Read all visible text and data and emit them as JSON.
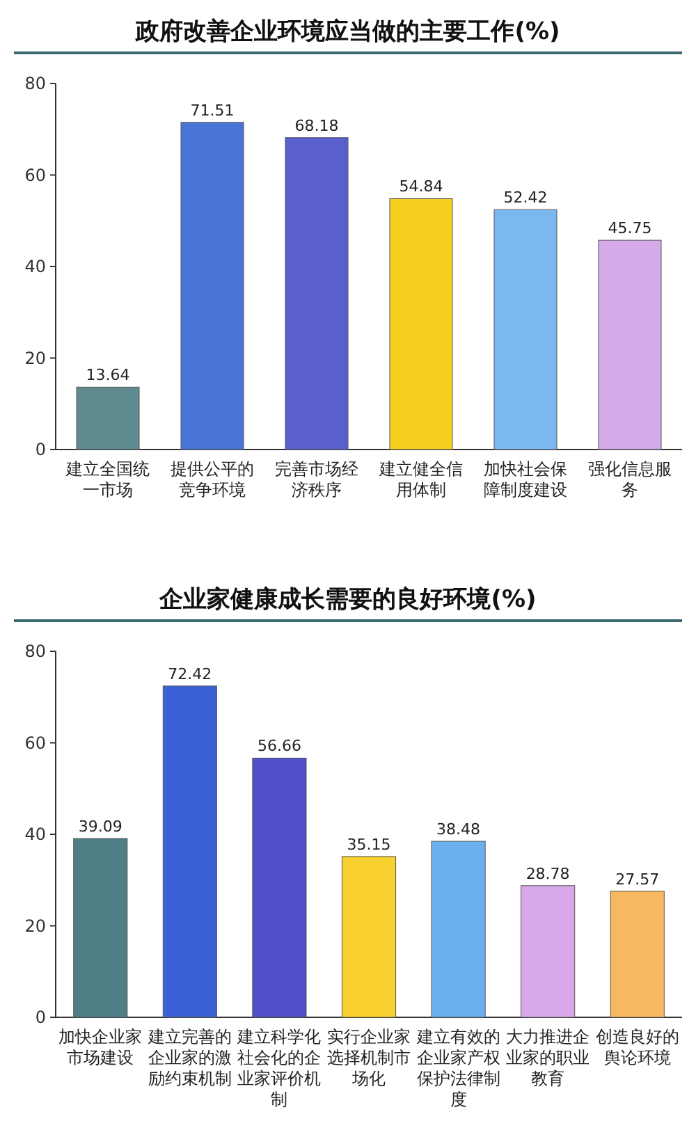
{
  "chart_data": [
    {
      "type": "bar",
      "title": "政府改善企业环境应当做的主要工作(%)",
      "categories": [
        "建立全国统一市场",
        "提供公平的竞争环境",
        "完善市场经济秩序",
        "建立健全信用体制",
        "加快社会保障制度建设",
        "强化信息服务"
      ],
      "values": [
        13.64,
        71.51,
        68.18,
        54.84,
        52.42,
        45.75
      ],
      "colors": [
        "#5f8a8f",
        "#4a74d8",
        "#5a5fd0",
        "#f5d020",
        "#7ab8f0",
        "#d4aae8"
      ],
      "ylim": [
        0,
        80
      ],
      "yticks": [
        0,
        20,
        40,
        60,
        80
      ],
      "data_labels": true,
      "grid": false
    },
    {
      "type": "bar",
      "title": "企业家健康成长需要的良好环境(%)",
      "categories": [
        "加快企业家市场建设",
        "建立完善的企业家的激励约束机制",
        "建立科学化社会化的企业家评价机制",
        "实行企业家选择机制市场化",
        "建立有效的企业家产权保护法律制度",
        "大力推进企业家的职业教育",
        "创造良好的舆论环境"
      ],
      "values": [
        39.09,
        72.42,
        56.66,
        35.15,
        38.48,
        28.78,
        27.57
      ],
      "colors": [
        "#4f7f86",
        "#3a62d6",
        "#5050c8",
        "#f8d030",
        "#6ab0ee",
        "#d8a8e8",
        "#f8b860"
      ],
      "ylim": [
        0,
        80
      ],
      "yticks": [
        0,
        20,
        40,
        60,
        80
      ],
      "data_labels": true,
      "grid": false
    }
  ]
}
